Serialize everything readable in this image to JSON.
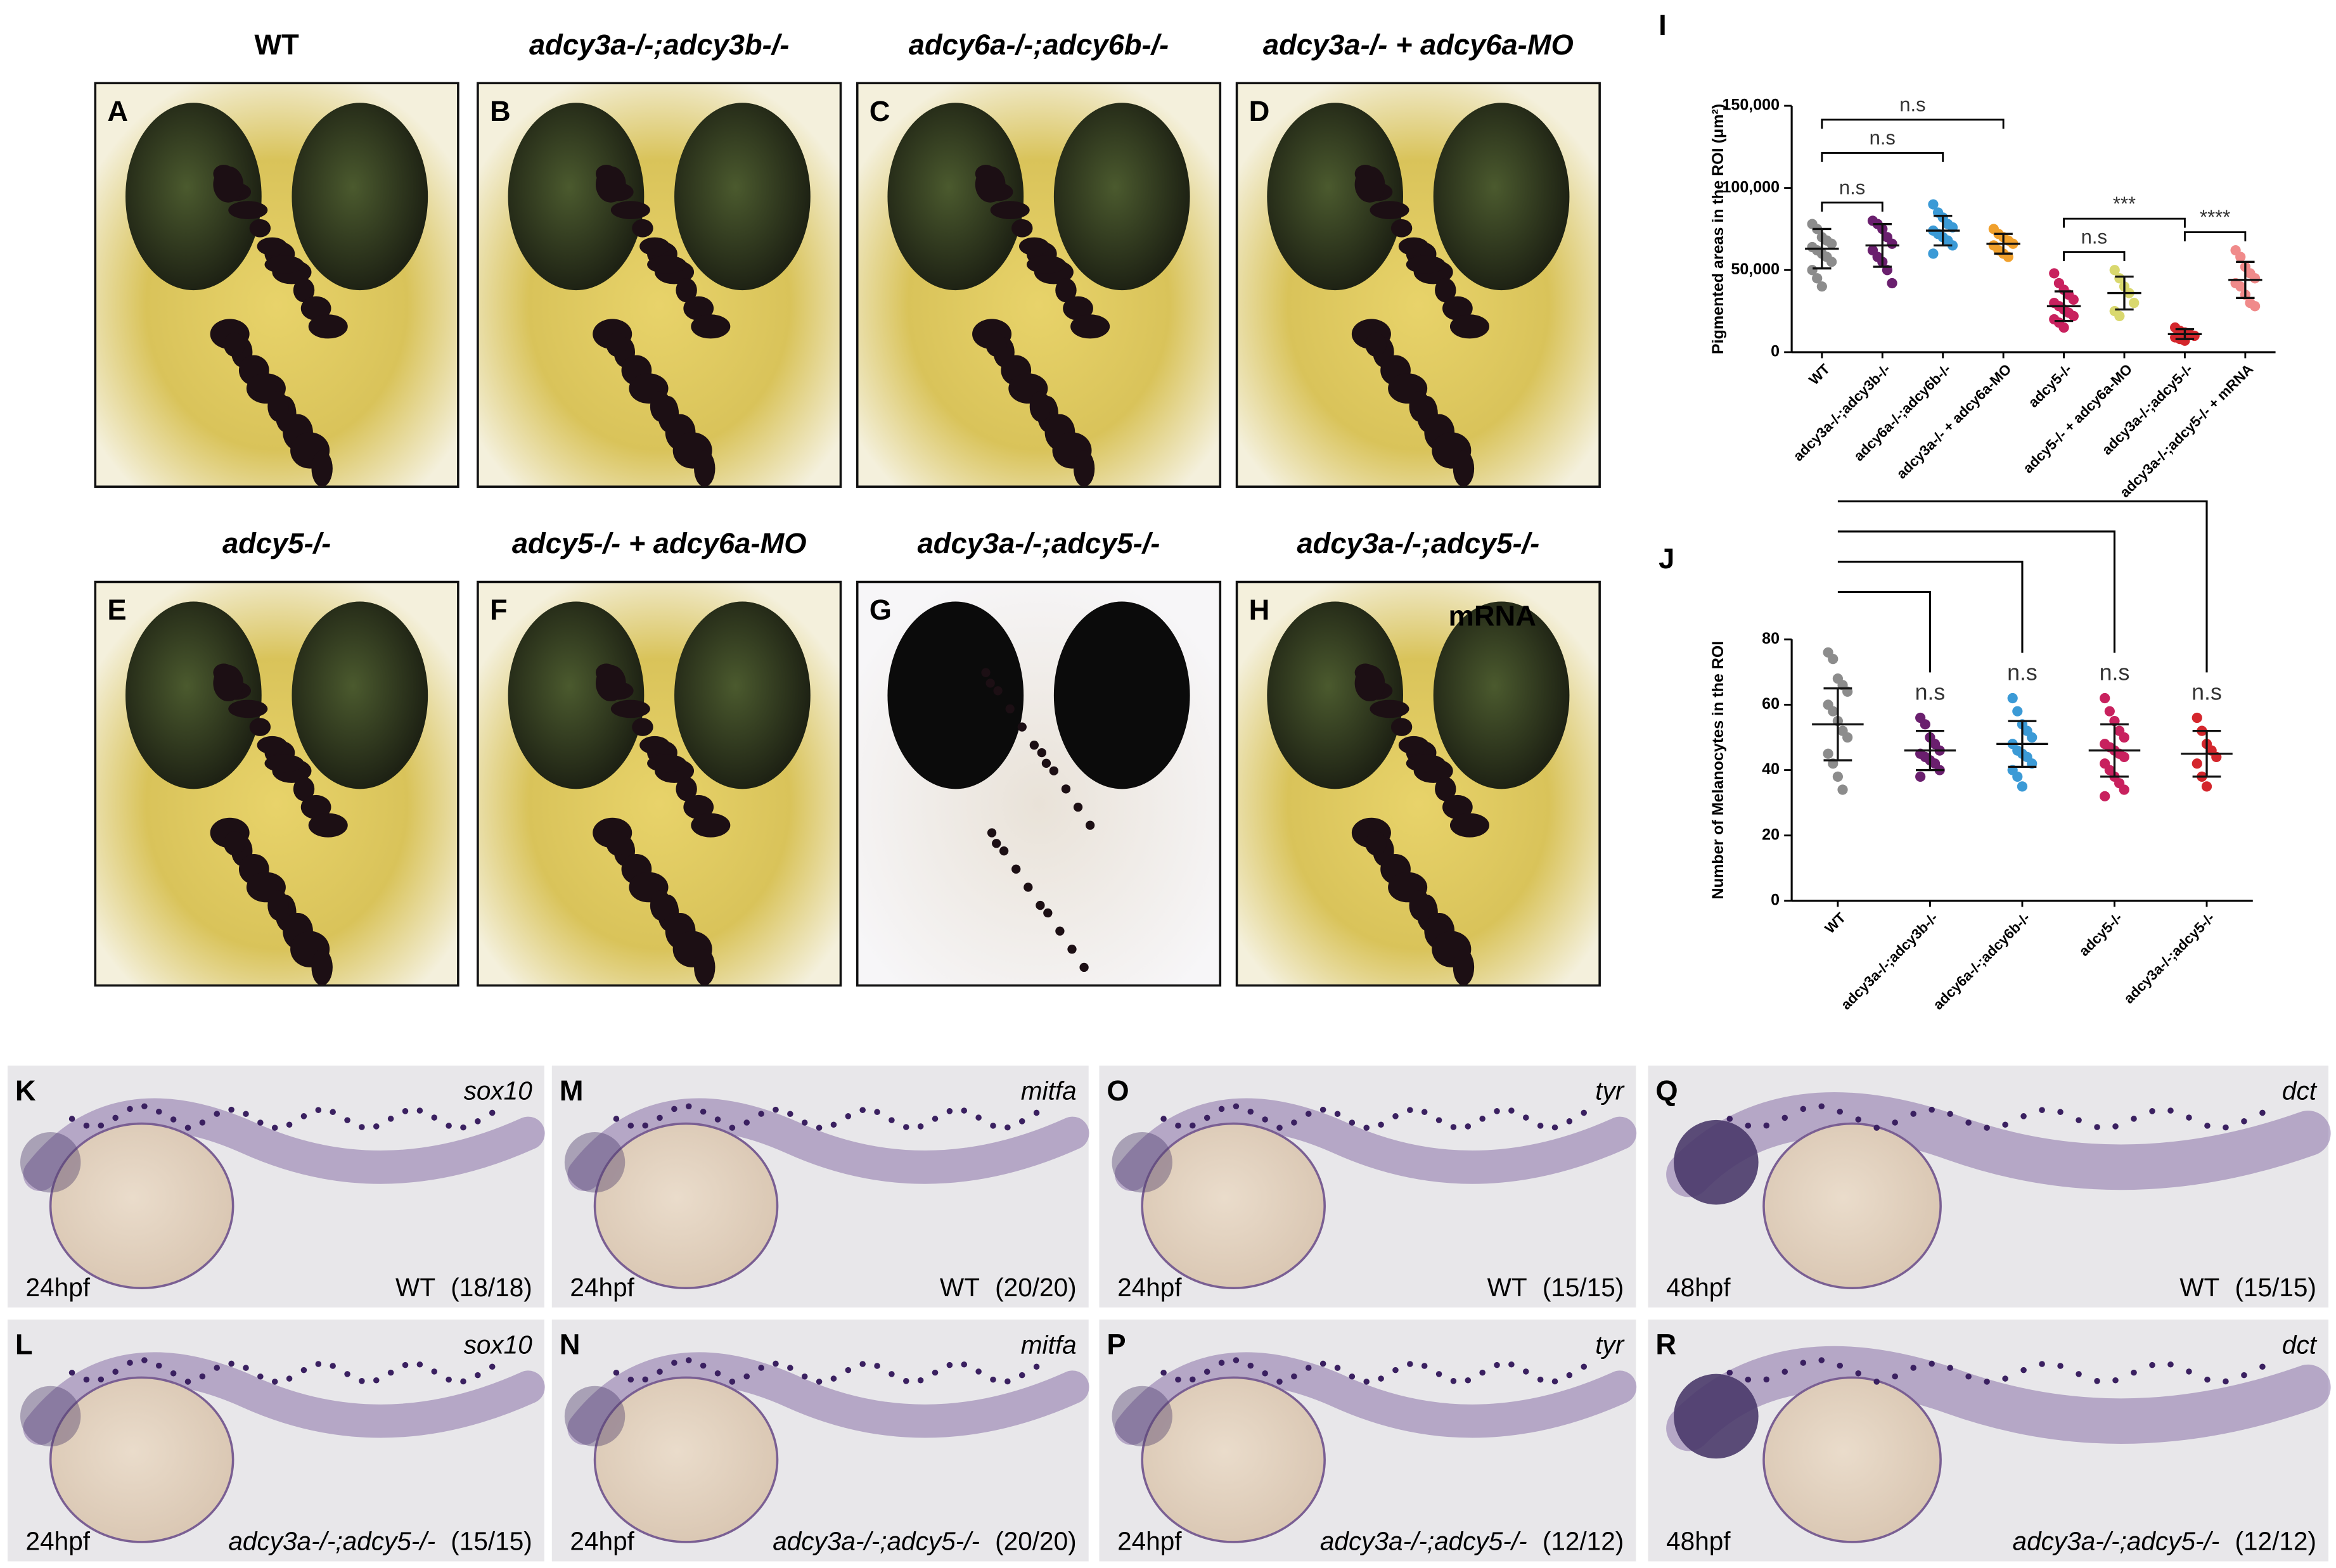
{
  "panels": [
    {
      "letter": "A",
      "title": "WT"
    },
    {
      "letter": "B",
      "title": "adcy3a-/-;adcy3b-/-"
    },
    {
      "letter": "C",
      "title": "adcy6a-/-;adcy6b-/-"
    },
    {
      "letter": "D",
      "title": "adcy3a-/- + adcy6a-MO"
    },
    {
      "letter": "E",
      "title": "adcy5-/-"
    },
    {
      "letter": "F",
      "title": "adcy5-/- + adcy6a-MO"
    },
    {
      "letter": "G",
      "title": "adcy3a-/-;adcy5-/-"
    },
    {
      "letter": "H",
      "title": "adcy3a-/-;adcy5-/-",
      "note": "mRNA"
    }
  ],
  "embryos": [
    {
      "letter": "K",
      "gene": "sox10",
      "stage": "24hpf",
      "genotype": "WT",
      "count": "(18/18)"
    },
    {
      "letter": "M",
      "gene": "mitfa",
      "stage": "24hpf",
      "genotype": "WT",
      "count": "(20/20)"
    },
    {
      "letter": "O",
      "gene": "tyr",
      "stage": "24hpf",
      "genotype": "WT",
      "count": "(15/15)"
    },
    {
      "letter": "Q",
      "gene": "dct",
      "stage": "48hpf",
      "genotype": "WT",
      "count": "(15/15)"
    },
    {
      "letter": "L",
      "gene": "sox10",
      "stage": "24hpf",
      "genotype": "adcy3a-/-;adcy5-/-",
      "count": "(15/15)"
    },
    {
      "letter": "N",
      "gene": "mitfa",
      "stage": "24hpf",
      "genotype": "adcy3a-/-;adcy5-/-",
      "count": "(20/20)"
    },
    {
      "letter": "P",
      "gene": "tyr",
      "stage": "24hpf",
      "genotype": "adcy3a-/-;adcy5-/-",
      "count": "(12/12)"
    },
    {
      "letter": "R",
      "gene": "dct",
      "stage": "48hpf",
      "genotype": "adcy3a-/-;adcy5-/-",
      "count": "(12/12)"
    }
  ],
  "chart_data": [
    {
      "type": "dot",
      "letter": "I",
      "ylabel": "Pigmented areas in the ROI (μm²)",
      "categories": [
        "WT",
        "adcy3a-/-;adcy3b-/-",
        "adcy6a-/-;adcy6b-/-",
        "adcy3a-/- + adcy6a-MO",
        "adcy5-/-",
        "adcy5-/- + adcy6a-MO",
        "adcy3a-/-;adcy5-/-",
        "adcy3a-/-;adcy5-/- + mRNA"
      ],
      "colors": [
        "#8c8c8c",
        "#6a1f6e",
        "#3b9ad6",
        "#f0a02c",
        "#c8215e",
        "#d9d86e",
        "#d4262c",
        "#f08a8a"
      ],
      "points": [
        [
          78000,
          75000,
          70000,
          68000,
          66000,
          64000,
          62000,
          60000,
          58000,
          55000,
          50000,
          45000,
          40000
        ],
        [
          80000,
          78000,
          75000,
          70000,
          66000,
          62000,
          58000,
          55000,
          50000,
          42000
        ],
        [
          90000,
          85000,
          82000,
          78000,
          76000,
          74000,
          72000,
          70000,
          68000,
          65000,
          60000
        ],
        [
          75000,
          72000,
          70000,
          68000,
          66000,
          65000,
          62000,
          60000,
          58000
        ],
        [
          48000,
          42000,
          38000,
          35000,
          32000,
          30000,
          28000,
          26000,
          24000,
          22000,
          20000,
          18000,
          15000
        ],
        [
          50000,
          45000,
          40000,
          36000,
          30000,
          25000,
          22000
        ],
        [
          15000,
          13000,
          12000,
          11000,
          10000,
          9000,
          8000,
          7000
        ],
        [
          62000,
          58000,
          52000,
          48000,
          45000,
          42000,
          40000,
          35000,
          30000,
          28000
        ]
      ],
      "mean": [
        63000,
        65000,
        74000,
        66000,
        28000,
        36000,
        11000,
        44000
      ],
      "sd": [
        12000,
        13000,
        9000,
        6000,
        9000,
        10000,
        3000,
        11000
      ],
      "ylim": [
        0,
        150000
      ],
      "yticks": [
        0,
        {
          "value": 50000,
          "label": "50,000"
        },
        {
          "value": 100000,
          "label": "100,000"
        },
        {
          "value": 150000,
          "label": "150,000"
        }
      ],
      "annotations": [
        {
          "from": 0,
          "to": 1,
          "label": "n.s"
        },
        {
          "from": 0,
          "to": 2,
          "label": "n.s"
        },
        {
          "from": 0,
          "to": 3,
          "label": "n.s"
        },
        {
          "from": 4,
          "to": 5,
          "label": "n.s"
        },
        {
          "from": 4,
          "to": 6,
          "label": "***"
        },
        {
          "from": 6,
          "to": 7,
          "label": "****"
        }
      ]
    },
    {
      "type": "dot",
      "letter": "J",
      "ylabel": "Number of Melanocytes in the ROI",
      "categories": [
        "WT",
        "adcy3a-/-;adcy3b-/-",
        "adcy6a-/-;adcy6b-/-",
        "adcy5-/-",
        "adcy3a-/-;adcy5-/-"
      ],
      "colors": [
        "#8c8c8c",
        "#6a1f6e",
        "#3b9ad6",
        "#c8215e",
        "#d4262c"
      ],
      "points": [
        [
          76,
          74,
          68,
          66,
          64,
          60,
          58,
          55,
          52,
          50,
          45,
          42,
          38,
          34
        ],
        [
          56,
          54,
          50,
          48,
          46,
          45,
          44,
          43,
          42,
          40,
          38
        ],
        [
          62,
          58,
          54,
          52,
          50,
          48,
          46,
          45,
          44,
          42,
          40,
          38,
          35
        ],
        [
          62,
          58,
          55,
          52,
          50,
          48,
          47,
          46,
          45,
          44,
          42,
          40,
          38,
          36,
          34,
          32
        ],
        [
          56,
          52,
          48,
          46,
          44,
          42,
          38,
          35
        ]
      ],
      "mean": [
        54,
        46,
        48,
        46,
        45
      ],
      "sd": [
        11,
        6,
        7,
        8,
        7
      ],
      "ylim": [
        0,
        80
      ],
      "yticks": [
        0,
        20,
        40,
        60,
        80
      ],
      "annotations": [
        {
          "from": 0,
          "to": 1,
          "label": "n.s"
        },
        {
          "from": 0,
          "to": 2,
          "label": "n.s"
        },
        {
          "from": 0,
          "to": 3,
          "label": "n.s"
        },
        {
          "from": 0,
          "to": 4,
          "label": "n.s"
        }
      ]
    }
  ]
}
